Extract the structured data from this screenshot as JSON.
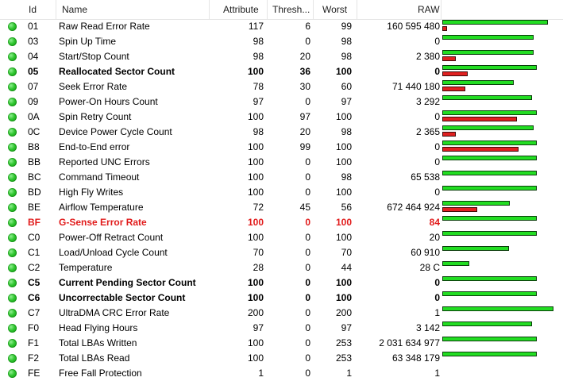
{
  "columns": {
    "id": "Id",
    "name": "Name",
    "attribute": "Attribute",
    "threshold": "Thresh...",
    "worst": "Worst",
    "raw": "RAW"
  },
  "colors": {
    "status_ok": "#2ec52e",
    "bar_green": "#22dd22",
    "bar_red": "#e02020",
    "critical_text": "#e11b1b"
  },
  "rows": [
    {
      "id": "01",
      "name": "Raw Read Error Rate",
      "attribute": "117",
      "threshold": "6",
      "worst": "99",
      "raw": "160 595 480",
      "style": "normal",
      "bar_green": 0.95,
      "bar_red": 0.05
    },
    {
      "id": "03",
      "name": "Spin Up Time",
      "attribute": "98",
      "threshold": "0",
      "worst": "98",
      "raw": "0",
      "style": "normal",
      "bar_green": 0.82,
      "bar_red": 0
    },
    {
      "id": "04",
      "name": "Start/Stop Count",
      "attribute": "98",
      "threshold": "20",
      "worst": "98",
      "raw": "2 380",
      "style": "normal",
      "bar_green": 0.82,
      "bar_red": 0.15
    },
    {
      "id": "05",
      "name": "Reallocated Sector Count",
      "attribute": "100",
      "threshold": "36",
      "worst": "100",
      "raw": "0",
      "style": "bold",
      "bar_green": 0.85,
      "bar_red": 0.28
    },
    {
      "id": "07",
      "name": "Seek Error Rate",
      "attribute": "78",
      "threshold": "30",
      "worst": "60",
      "raw": "71 440 180",
      "style": "normal",
      "bar_green": 0.64,
      "bar_red": 0.25
    },
    {
      "id": "09",
      "name": "Power-On Hours Count",
      "attribute": "97",
      "threshold": "0",
      "worst": "97",
      "raw": "3 292",
      "style": "normal",
      "bar_green": 0.81,
      "bar_red": 0
    },
    {
      "id": "0A",
      "name": "Spin Retry Count",
      "attribute": "100",
      "threshold": "97",
      "worst": "100",
      "raw": "0",
      "style": "normal",
      "bar_green": 0.85,
      "bar_red": 0.82
    },
    {
      "id": "0C",
      "name": "Device Power Cycle Count",
      "attribute": "98",
      "threshold": "20",
      "worst": "98",
      "raw": "2 365",
      "style": "normal",
      "bar_green": 0.82,
      "bar_red": 0.15
    },
    {
      "id": "B8",
      "name": "End-to-End error",
      "attribute": "100",
      "threshold": "99",
      "worst": "100",
      "raw": "0",
      "style": "normal",
      "bar_green": 0.85,
      "bar_red": 0.84
    },
    {
      "id": "BB",
      "name": "Reported UNC Errors",
      "attribute": "100",
      "threshold": "0",
      "worst": "100",
      "raw": "0",
      "style": "normal",
      "bar_green": 0.85,
      "bar_red": 0
    },
    {
      "id": "BC",
      "name": "Command Timeout",
      "attribute": "100",
      "threshold": "0",
      "worst": "98",
      "raw": "65 538",
      "style": "normal",
      "bar_green": 0.85,
      "bar_red": 0
    },
    {
      "id": "BD",
      "name": "High Fly Writes",
      "attribute": "100",
      "threshold": "0",
      "worst": "100",
      "raw": "0",
      "style": "normal",
      "bar_green": 0.85,
      "bar_red": 0
    },
    {
      "id": "BE",
      "name": "Airflow Temperature",
      "attribute": "72",
      "threshold": "45",
      "worst": "56",
      "raw": "672 464 924",
      "style": "normal",
      "bar_green": 0.61,
      "bar_red": 0.38
    },
    {
      "id": "BF",
      "name": "G-Sense Error Rate",
      "attribute": "100",
      "threshold": "0",
      "worst": "100",
      "raw": "84",
      "style": "critical",
      "bar_green": 0.85,
      "bar_red": 0
    },
    {
      "id": "C0",
      "name": "Power-Off Retract Count",
      "attribute": "100",
      "threshold": "0",
      "worst": "100",
      "raw": "20",
      "style": "normal",
      "bar_green": 0.85,
      "bar_red": 0
    },
    {
      "id": "C1",
      "name": "Load/Unload Cycle Count",
      "attribute": "70",
      "threshold": "0",
      "worst": "70",
      "raw": "60 910",
      "style": "normal",
      "bar_green": 0.6,
      "bar_red": 0
    },
    {
      "id": "C2",
      "name": "Temperature",
      "attribute": "28",
      "threshold": "0",
      "worst": "44",
      "raw": "28 C",
      "style": "normal",
      "bar_green": 0.24,
      "bar_red": 0
    },
    {
      "id": "C5",
      "name": "Current Pending Sector Count",
      "attribute": "100",
      "threshold": "0",
      "worst": "100",
      "raw": "0",
      "style": "bold",
      "bar_green": 0.85,
      "bar_red": 0
    },
    {
      "id": "C6",
      "name": "Uncorrectable Sector Count",
      "attribute": "100",
      "threshold": "0",
      "worst": "100",
      "raw": "0",
      "style": "bold",
      "bar_green": 0.85,
      "bar_red": 0
    },
    {
      "id": "C7",
      "name": "UltraDMA CRC Error Rate",
      "attribute": "200",
      "threshold": "0",
      "worst": "200",
      "raw": "1",
      "style": "normal",
      "bar_green": 1.0,
      "bar_red": 0
    },
    {
      "id": "F0",
      "name": "Head Flying Hours",
      "attribute": "97",
      "threshold": "0",
      "worst": "97",
      "raw": "3 142",
      "style": "normal",
      "bar_green": 0.81,
      "bar_red": 0
    },
    {
      "id": "F1",
      "name": "Total LBAs Written",
      "attribute": "100",
      "threshold": "0",
      "worst": "253",
      "raw": "2 031 634 977",
      "style": "normal",
      "bar_green": 0.85,
      "bar_red": 0
    },
    {
      "id": "F2",
      "name": "Total LBAs Read",
      "attribute": "100",
      "threshold": "0",
      "worst": "253",
      "raw": "63 348 179",
      "style": "normal",
      "bar_green": 0.85,
      "bar_red": 0
    },
    {
      "id": "FE",
      "name": "Free Fall Protection",
      "attribute": "1",
      "threshold": "0",
      "worst": "1",
      "raw": "1",
      "style": "normal",
      "bar_green": 0,
      "bar_red": 0
    }
  ]
}
